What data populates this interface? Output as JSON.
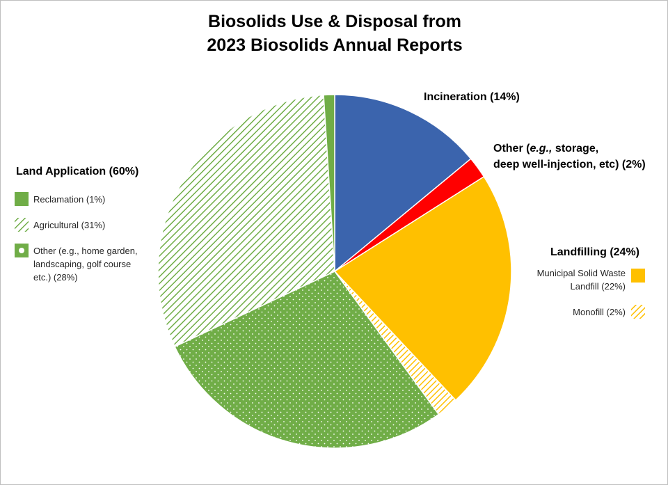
{
  "chart_data": {
    "type": "pie",
    "title": [
      "Biosolids Use & Disposal from",
      "2023 Biosolids Annual Reports"
    ],
    "slices": [
      {
        "label": "Incineration (14%)",
        "value": 14,
        "color": "#3b64ad",
        "pattern": "solid"
      },
      {
        "label": "Other (e.g., storage, deep well-injection, etc) (2%)",
        "value": 2,
        "color": "#ff0000",
        "pattern": "solid"
      },
      {
        "label": "Municipal Solid Waste Landfill (22%)",
        "value": 22,
        "color": "#ffc000",
        "pattern": "solid"
      },
      {
        "label": "Monofill (2%)",
        "value": 2,
        "color": "#ffc000",
        "pattern": "hatch"
      },
      {
        "label": "Other (e.g., home garden, landscaping, golf course etc.) (28%)",
        "value": 28,
        "color": "#70ad47",
        "pattern": "dots"
      },
      {
        "label": "Agricultural (31%)",
        "value": 31,
        "color": "#70ad47",
        "pattern": "hatch"
      },
      {
        "label": "Reclamation (1%)",
        "value": 1,
        "color": "#70ad47",
        "pattern": "solid"
      }
    ],
    "groups": [
      {
        "label": "Land Application (60%)",
        "items": [
          "Reclamation (1%)",
          "Agricultural (31%)",
          "Other (e.g., home garden, landscaping, golf course etc.) (28%)"
        ]
      },
      {
        "label": "Landfilling (24%)",
        "items": [
          "Municipal Solid Waste Landfill (22%)",
          "Monofill (2%)"
        ]
      }
    ],
    "labels": {
      "incineration": "Incineration (14%)",
      "other_line1": "Other (",
      "other_eg": "e.g.,",
      "other_rest": " storage,",
      "other_line2": "deep well-injection, etc) (2%)",
      "land_application": "Land Application (60%)",
      "landfilling": "Landfilling (24%)"
    },
    "legend_text": {
      "reclamation": "Reclamation (1%)",
      "agricultural": "Agricultural (31%)",
      "other_lines": [
        "Other (e.g., home garden,",
        "landscaping, golf course",
        "etc.) (28%)"
      ],
      "msw_lines": [
        "Municipal Solid Waste",
        "Landfill (22%)"
      ],
      "monofill": "Monofill (2%)"
    }
  }
}
